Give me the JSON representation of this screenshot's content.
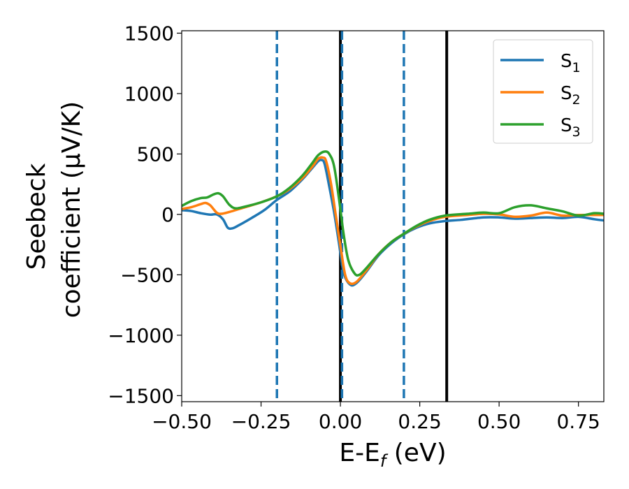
{
  "chart_data": {
    "type": "line",
    "xlabel_main": "E-E",
    "xlabel_sub": "f",
    "xlabel_unit": " (eV)",
    "ylabel_line1": "Seebeck",
    "ylabel_line2": "coefficient  (μV/K)",
    "xlim": [
      -0.5,
      0.83
    ],
    "ylim": [
      -1550,
      1520
    ],
    "xticks": [
      -0.5,
      -0.25,
      0.0,
      0.25,
      0.5,
      0.75
    ],
    "xtick_labels": [
      "−0.50",
      "−0.25",
      "0.00",
      "0.25",
      "0.50",
      "0.75"
    ],
    "yticks": [
      1500,
      1000,
      500,
      0,
      -500,
      -1000,
      -1500
    ],
    "ytick_labels": [
      "1500",
      "1000",
      "500",
      "0",
      "−500",
      "−1000",
      "−1500"
    ],
    "legend_position": "top-right",
    "vertical_lines": [
      {
        "x": -0.2,
        "style": "dashed",
        "color": "#1f77b4"
      },
      {
        "x": 0.0,
        "style": "solid",
        "color": "#000000"
      },
      {
        "x": 0.005,
        "style": "dashed",
        "color": "#1f77b4"
      },
      {
        "x": 0.2,
        "style": "dashed",
        "color": "#1f77b4"
      },
      {
        "x": 0.335,
        "style": "solid",
        "color": "#000000"
      }
    ],
    "series": [
      {
        "name": "S",
        "sub": "1",
        "color": "#1f77b4",
        "points": [
          [
            -0.5,
            35
          ],
          [
            -0.47,
            28
          ],
          [
            -0.44,
            10
          ],
          [
            -0.41,
            -2
          ],
          [
            -0.39,
            0
          ],
          [
            -0.37,
            -40
          ],
          [
            -0.355,
            -110
          ],
          [
            -0.34,
            -115
          ],
          [
            -0.32,
            -90
          ],
          [
            -0.28,
            -30
          ],
          [
            -0.24,
            35
          ],
          [
            -0.2,
            120
          ],
          [
            -0.16,
            190
          ],
          [
            -0.12,
            290
          ],
          [
            -0.09,
            380
          ],
          [
            -0.07,
            440
          ],
          [
            -0.06,
            450
          ],
          [
            -0.05,
            420
          ],
          [
            -0.035,
            230
          ],
          [
            -0.02,
            20
          ],
          [
            -0.005,
            -230
          ],
          [
            0.01,
            -480
          ],
          [
            0.03,
            -580
          ],
          [
            0.05,
            -570
          ],
          [
            0.08,
            -480
          ],
          [
            0.12,
            -340
          ],
          [
            0.16,
            -240
          ],
          [
            0.2,
            -165
          ],
          [
            0.24,
            -110
          ],
          [
            0.28,
            -75
          ],
          [
            0.33,
            -55
          ],
          [
            0.38,
            -45
          ],
          [
            0.45,
            -25
          ],
          [
            0.5,
            -25
          ],
          [
            0.55,
            -35
          ],
          [
            0.6,
            -30
          ],
          [
            0.65,
            -25
          ],
          [
            0.7,
            -30
          ],
          [
            0.75,
            -20
          ],
          [
            0.8,
            -40
          ],
          [
            0.83,
            -50
          ]
        ]
      },
      {
        "name": "S",
        "sub": "2",
        "color": "#ff7f0e",
        "points": [
          [
            -0.5,
            45
          ],
          [
            -0.47,
            60
          ],
          [
            -0.44,
            85
          ],
          [
            -0.425,
            95
          ],
          [
            -0.41,
            75
          ],
          [
            -0.39,
            15
          ],
          [
            -0.375,
            5
          ],
          [
            -0.35,
            20
          ],
          [
            -0.3,
            60
          ],
          [
            -0.25,
            100
          ],
          [
            -0.2,
            150
          ],
          [
            -0.16,
            210
          ],
          [
            -0.12,
            300
          ],
          [
            -0.09,
            390
          ],
          [
            -0.07,
            460
          ],
          [
            -0.055,
            470
          ],
          [
            -0.045,
            440
          ],
          [
            -0.03,
            260
          ],
          [
            -0.015,
            0
          ],
          [
            0.0,
            -260
          ],
          [
            0.015,
            -500
          ],
          [
            0.03,
            -570
          ],
          [
            0.05,
            -560
          ],
          [
            0.08,
            -470
          ],
          [
            0.12,
            -330
          ],
          [
            0.16,
            -230
          ],
          [
            0.2,
            -160
          ],
          [
            0.24,
            -100
          ],
          [
            0.28,
            -55
          ],
          [
            0.33,
            -20
          ],
          [
            0.4,
            -5
          ],
          [
            0.45,
            5
          ],
          [
            0.5,
            0
          ],
          [
            0.55,
            -20
          ],
          [
            0.6,
            -10
          ],
          [
            0.65,
            15
          ],
          [
            0.7,
            -10
          ],
          [
            0.75,
            -5
          ],
          [
            0.8,
            -5
          ],
          [
            0.83,
            -5
          ]
        ]
      },
      {
        "name": "S",
        "sub": "3",
        "color": "#2ca02c",
        "points": [
          [
            -0.5,
            70
          ],
          [
            -0.47,
            110
          ],
          [
            -0.44,
            135
          ],
          [
            -0.42,
            140
          ],
          [
            -0.4,
            165
          ],
          [
            -0.385,
            175
          ],
          [
            -0.37,
            150
          ],
          [
            -0.35,
            80
          ],
          [
            -0.33,
            50
          ],
          [
            -0.3,
            65
          ],
          [
            -0.25,
            100
          ],
          [
            -0.2,
            150
          ],
          [
            -0.16,
            220
          ],
          [
            -0.12,
            320
          ],
          [
            -0.09,
            420
          ],
          [
            -0.07,
            490
          ],
          [
            -0.05,
            520
          ],
          [
            -0.035,
            500
          ],
          [
            -0.02,
            400
          ],
          [
            -0.005,
            140
          ],
          [
            0.01,
            -160
          ],
          [
            0.025,
            -380
          ],
          [
            0.045,
            -490
          ],
          [
            0.06,
            -500
          ],
          [
            0.08,
            -450
          ],
          [
            0.12,
            -330
          ],
          [
            0.16,
            -230
          ],
          [
            0.2,
            -160
          ],
          [
            0.24,
            -95
          ],
          [
            0.28,
            -45
          ],
          [
            0.33,
            -10
          ],
          [
            0.4,
            5
          ],
          [
            0.45,
            15
          ],
          [
            0.5,
            10
          ],
          [
            0.55,
            60
          ],
          [
            0.6,
            75
          ],
          [
            0.65,
            50
          ],
          [
            0.7,
            25
          ],
          [
            0.75,
            -10
          ],
          [
            0.8,
            10
          ],
          [
            0.83,
            5
          ]
        ]
      }
    ]
  }
}
